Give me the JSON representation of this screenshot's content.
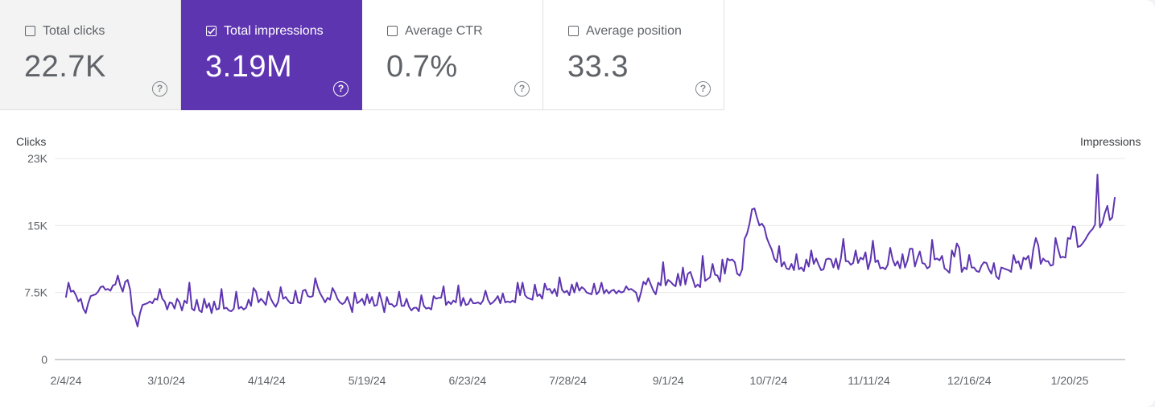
{
  "metric_cards": [
    {
      "label": "Total clicks",
      "value": "22.7K",
      "checked": false
    },
    {
      "label": "Total impressions",
      "value": "3.19M",
      "checked": true
    },
    {
      "label": "Average CTR",
      "value": "0.7%",
      "checked": false
    },
    {
      "label": "Average position",
      "value": "33.3",
      "checked": false
    }
  ],
  "help_glyph": "?",
  "colors": {
    "accent": "#5e35b1",
    "line": "#5e35b1",
    "grid": "#e8e8e8",
    "first_card_bg": "#f3f3f3"
  },
  "chart_data": {
    "type": "line",
    "ylabel_left": "Clicks",
    "ylabel_right": "Impressions",
    "y_ticks": [
      "0",
      "7.5K",
      "15K",
      "23K"
    ],
    "y_tick_values": [
      0,
      7500,
      15000,
      22500
    ],
    "ylim": [
      0,
      22500
    ],
    "x_ticks": [
      "2/4/24",
      "3/10/24",
      "4/14/24",
      "5/19/24",
      "6/23/24",
      "7/28/24",
      "9/1/24",
      "10/7/24",
      "11/11/24",
      "12/16/24",
      "1/20/25"
    ],
    "x_start": "2024-02-04",
    "x_end": "2025-02-02",
    "grid": true,
    "series": [
      {
        "values": [
          7000,
          8600,
          7600,
          7700,
          7200,
          6500,
          6800,
          5700,
          5200,
          6300,
          7100,
          7200,
          7300,
          7600,
          8100,
          8200,
          7800,
          7900,
          7700,
          8300,
          8400,
          9400,
          8300,
          7600,
          8700,
          8900,
          7800,
          5100,
          4700,
          3700,
          5200,
          6100,
          6200,
          6300,
          6500,
          6300,
          6800,
          6700,
          7900,
          6800,
          6500,
          5600,
          6400,
          6300,
          5700,
          6800,
          6400,
          5500,
          6600,
          6300,
          8600,
          5700,
          5500,
          6700,
          5500,
          5300,
          6800,
          5800,
          6300,
          5200,
          6500,
          5600,
          5700,
          7900,
          5700,
          5800,
          5500,
          5400,
          5700,
          7600,
          5700,
          5900,
          5600,
          5800,
          6700,
          6000,
          8000,
          7600,
          6400,
          6800,
          6500,
          6100,
          7600,
          6800,
          6300,
          5900,
          6500,
          8100,
          6800,
          7000,
          6600,
          6300,
          6300,
          7700,
          6400,
          6300,
          7700,
          7800,
          7100,
          7000,
          7100,
          9100,
          8100,
          7400,
          6900,
          6400,
          6900,
          6700,
          8000,
          7500,
          6800,
          6400,
          6200,
          6400,
          7000,
          6200,
          5300,
          7500,
          6300,
          6500,
          6800,
          6100,
          7300,
          6300,
          7000,
          6000,
          6100,
          7500,
          6500,
          5300,
          7000,
          6200,
          6200,
          5900,
          6100,
          7600,
          6000,
          6000,
          6800,
          5900,
          5500,
          5800,
          5800,
          5400,
          7200,
          6000,
          5700,
          5800,
          5600,
          7100,
          6800,
          6900,
          6900,
          8200,
          6100,
          6500,
          6200,
          6600,
          6400,
          8300,
          6000,
          6900,
          6100,
          6200,
          6800,
          6300,
          6300,
          6400,
          6200,
          6600,
          7700,
          6700,
          6200,
          6400,
          6700,
          7100,
          6300,
          7400,
          6400,
          6500,
          6400,
          6600,
          6400,
          8600,
          7200,
          8600,
          7200,
          6900,
          6800,
          6700,
          8400,
          7100,
          7300,
          6800,
          8500,
          7800,
          7900,
          7400,
          7900,
          7100,
          9200,
          7800,
          7500,
          7700,
          7200,
          8400,
          7500,
          8600,
          7700,
          8100,
          7900,
          7500,
          7400,
          7300,
          8500,
          7300,
          7600,
          8600,
          7400,
          7800,
          7400,
          7700,
          7800,
          7400,
          7700,
          7500,
          7600,
          8200,
          7800,
          7900,
          7700,
          7500,
          6500,
          7500,
          8700,
          8400,
          9100,
          8400,
          7700,
          7300,
          8600,
          8300,
          10900,
          8300,
          8900,
          8700,
          8400,
          8200,
          9600,
          8300,
          10300,
          8400,
          9600,
          9800,
          9000,
          8100,
          8400,
          8100,
          11600,
          8800,
          9000,
          9200,
          10700,
          9500,
          9400,
          8700,
          11200,
          9600,
          11300,
          11100,
          11200,
          10900,
          9600,
          9400,
          10100,
          13500,
          14100,
          15200,
          16800,
          16900,
          15900,
          15000,
          15200,
          14800,
          13600,
          12900,
          12300,
          11300,
          10900,
          12700,
          10400,
          10900,
          10200,
          10100,
          10700,
          10000,
          11800,
          10100,
          10300,
          9900,
          11200,
          10400,
          12200,
          10700,
          11300,
          10600,
          10000,
          10100,
          11200,
          11300,
          11200,
          10300,
          11300,
          10100,
          11300,
          13500,
          11000,
          11000,
          10600,
          10800,
          12200,
          10800,
          11400,
          11200,
          12000,
          10100,
          11100,
          13300,
          10900,
          11100,
          10200,
          10300,
          10100,
          10600,
          12500,
          11200,
          10500,
          11000,
          10200,
          11800,
          10300,
          11100,
          12400,
          12400,
          10400,
          11300,
          12100,
          10800,
          10700,
          10200,
          10400,
          13400,
          11200,
          11300,
          11100,
          11600,
          10200,
          10000,
          9700,
          12200,
          11500,
          13000,
          12500,
          9800,
          10300,
          10100,
          11700,
          10300,
          10300,
          9900,
          9800,
          10500,
          10900,
          10800,
          10100,
          9600,
          10800,
          9300,
          9000,
          10300,
          10200,
          10100,
          10000,
          9800,
          11700,
          10800,
          11000,
          10100,
          11400,
          11200,
          11600,
          10200,
          12300,
          13600,
          12800,
          10700,
          11300,
          11000,
          11000,
          10500,
          10600,
          13600,
          12400,
          11400,
          11500,
          11400,
          13600,
          13500,
          14900,
          14800,
          12600,
          12700,
          13000,
          13400,
          13900,
          14300,
          14600,
          15100,
          20700,
          14800,
          15300,
          16400,
          17200,
          15600,
          15900,
          18100
        ]
      }
    ]
  }
}
